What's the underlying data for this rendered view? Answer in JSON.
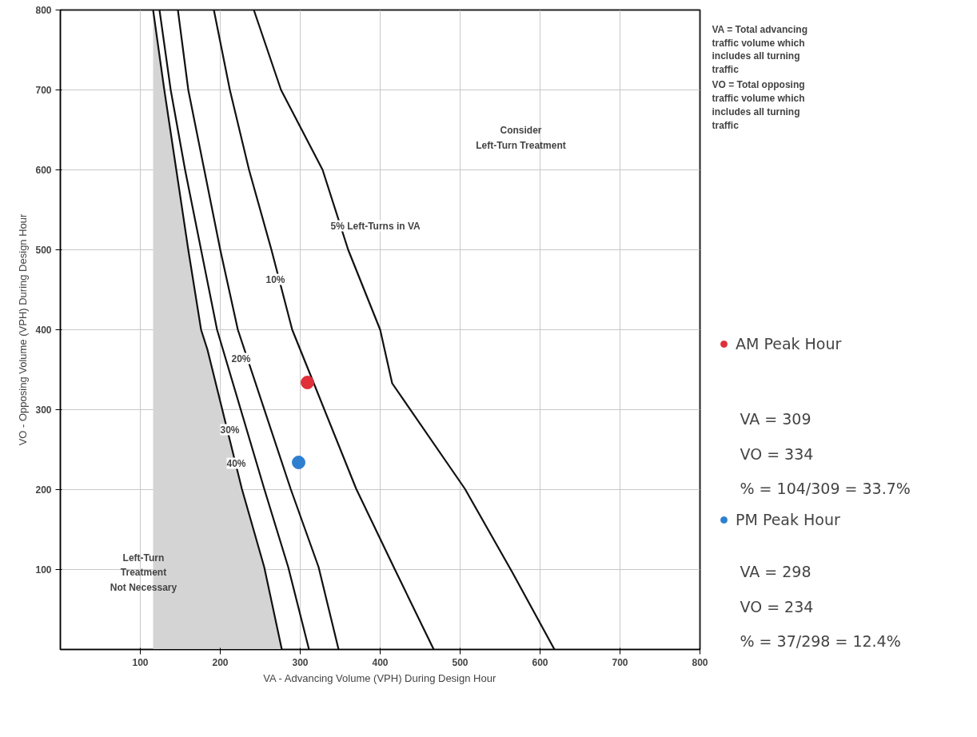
{
  "chart_data": {
    "type": "line",
    "xlabel": "VA - Advancing Volume (VPH) During Design Hour",
    "ylabel": "VO - Opposing Volume (VPH) During Design Hour",
    "xlim": [
      0,
      800
    ],
    "ylim": [
      0,
      800
    ],
    "xticks": [
      100,
      200,
      300,
      400,
      500,
      600,
      700,
      800
    ],
    "yticks": [
      100,
      200,
      300,
      400,
      500,
      600,
      700,
      800
    ],
    "grid": true,
    "legend": "right",
    "marker": "circle",
    "series": [
      {
        "type": "area",
        "marker": "none",
        "color": "#d4d4d4",
        "x": [
          116,
          130,
          145,
          160,
          176,
          184,
          227,
          255,
          277
        ],
        "values": [
          800,
          700,
          600,
          500,
          400,
          375,
          201,
          103,
          0
        ]
      },
      {
        "marker": "none",
        "color": "#111111",
        "x": [
          124,
          138,
          156,
          176,
          196,
          255,
          285,
          311
        ],
        "values": [
          800,
          700,
          600,
          500,
          400,
          201,
          103,
          0
        ]
      },
      {
        "marker": "none",
        "color": "#111111",
        "x": [
          147,
          160,
          180,
          200,
          222,
          288,
          323,
          348
        ],
        "values": [
          800,
          700,
          600,
          500,
          400,
          201,
          103,
          0
        ]
      },
      {
        "marker": "none",
        "color": "#111111",
        "x": [
          192,
          212,
          236,
          264,
          290,
          317,
          370,
          417,
          467
        ],
        "values": [
          800,
          700,
          600,
          500,
          400,
          333,
          201,
          103,
          0
        ]
      },
      {
        "marker": "none",
        "color": "#111111",
        "x": [
          242,
          276,
          328,
          360,
          400,
          415,
          506,
          565,
          618
        ],
        "values": [
          800,
          700,
          600,
          500,
          400,
          333,
          201,
          97,
          0
        ]
      },
      {
        "type": "scatter",
        "name": "AM Peak Hour",
        "color": "#e0303a",
        "x": [
          309
        ],
        "values": [
          334
        ]
      },
      {
        "type": "scatter",
        "name": "PM Peak Hour",
        "color": "#2f7fd0",
        "x": [
          298
        ],
        "values": [
          234
        ]
      }
    ],
    "annotations": [
      {
        "text": "5%     Left-Turns in VA",
        "x": 350,
        "y": 530
      },
      {
        "text": "10%",
        "x": 269,
        "y": 463
      },
      {
        "text": "20%",
        "x": 226,
        "y": 364
      },
      {
        "text": "30%",
        "x": 212,
        "y": 275
      },
      {
        "text": "40%",
        "x": 220,
        "y": 233
      },
      "Consider\nLeft-Turn Treatment",
      "Left-Turn\nTreatment\nNot Necessary",
      "VA = Total advancing\n        traffic volume which\n        includes all turning\n        traffic",
      "VO = Total opposing\n        traffic volume which\n        includes all turning\n        traffic",
      "VA = 309",
      "VO = 334",
      "% = 104/309 = 33.7%",
      "VA = 298",
      "VO = 234",
      "% = 37/298 = 12.4%"
    ]
  }
}
